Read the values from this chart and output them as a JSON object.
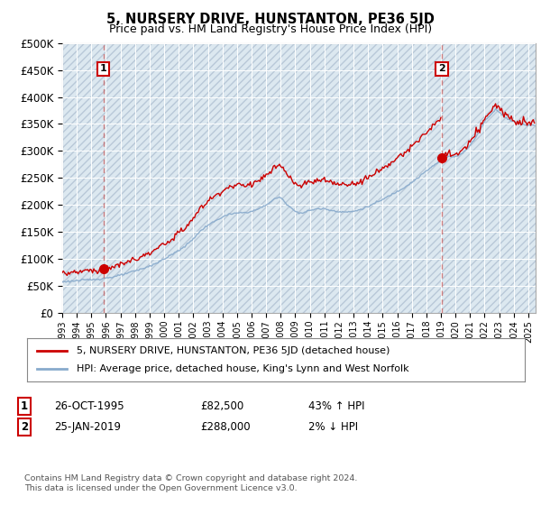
{
  "title": "5, NURSERY DRIVE, HUNSTANTON, PE36 5JD",
  "subtitle": "Price paid vs. HM Land Registry's House Price Index (HPI)",
  "ylim": [
    0,
    500000
  ],
  "yticks": [
    0,
    50000,
    100000,
    150000,
    200000,
    250000,
    300000,
    350000,
    400000,
    450000,
    500000
  ],
  "ytick_labels": [
    "£0",
    "£50K",
    "£100K",
    "£150K",
    "£200K",
    "£250K",
    "£300K",
    "£350K",
    "£400K",
    "£450K",
    "£500K"
  ],
  "background_color": "#ffffff",
  "plot_background": "#dce8f0",
  "hatch_color": "#b8c8d8",
  "grid_color": "#ffffff",
  "sale1_date": 1995.82,
  "sale1_price": 82500,
  "sale2_date": 2019.07,
  "sale2_price": 288000,
  "sale1_label": "1",
  "sale2_label": "2",
  "red_line_color": "#cc0000",
  "blue_line_color": "#88aacc",
  "dashed_line_color": "#cc6666",
  "legend_label_red": "5, NURSERY DRIVE, HUNSTANTON, PE36 5JD (detached house)",
  "legend_label_blue": "HPI: Average price, detached house, King's Lynn and West Norfolk",
  "footer": "Contains HM Land Registry data © Crown copyright and database right 2024.\nThis data is licensed under the Open Government Licence v3.0.",
  "xmin": 1993.0,
  "xmax": 2025.5,
  "ann1_date": "26-OCT-1995",
  "ann1_price": "£82,500",
  "ann1_hpi": "43% ↑ HPI",
  "ann2_date": "25-JAN-2019",
  "ann2_price": "£288,000",
  "ann2_hpi": "2% ↓ HPI"
}
